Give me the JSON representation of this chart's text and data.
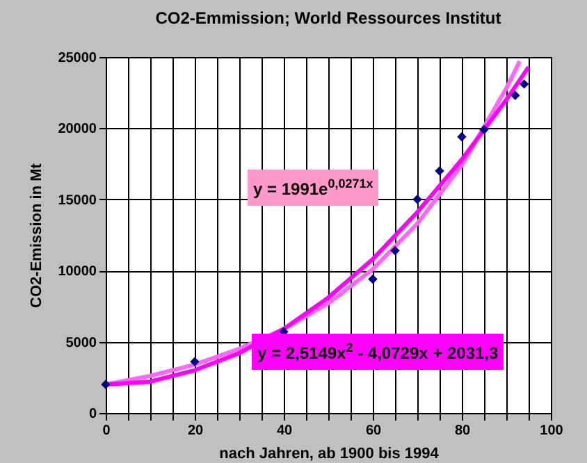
{
  "chart_data": {
    "type": "scatter",
    "title": "CO2-Emmission; World Ressources Institut",
    "xlabel": "nach Jahren, ab 1900 bis 1994",
    "ylabel": "CO2-Emission in Mt",
    "annotations": [
      "y = 1991e$^{0,0271x}$",
      "y = 2,5149x$^{2}$ - 4,0729x + 2031,3"
    ],
    "series": [
      {
        "type": "scatter",
        "color": "#000080",
        "marker": "diamond",
        "x": [
          0,
          20,
          40,
          60,
          65,
          70,
          75,
          80,
          85,
          92,
          94
        ],
        "values": [
          2000,
          3600,
          5700,
          9400,
          11400,
          15000,
          17000,
          19400,
          19900,
          22300,
          23100
        ]
      },
      {
        "type": "line",
        "color": "#ff66ff",
        "x": [
          0,
          10,
          20,
          30,
          40,
          50,
          60,
          70,
          80,
          90,
          93
        ],
        "values": [
          2000,
          2600,
          3400,
          4500,
          5900,
          7700,
          10100,
          13300,
          17400,
          22800,
          24700
        ]
      },
      {
        "type": "line",
        "color": "#ff00ff",
        "x": [
          0,
          10,
          20,
          30,
          40,
          50,
          60,
          70,
          80,
          90,
          95
        ],
        "values": [
          2000,
          2200,
          3000,
          4200,
          5900,
          8100,
          10800,
          14100,
          17800,
          22000,
          24300
        ]
      }
    ],
    "xlim": [
      0,
      100
    ],
    "xticks": [
      0,
      {
        "value": 5,
        "label": null
      },
      {
        "value": 10,
        "label": null
      },
      {
        "value": 15,
        "label": null
      },
      20,
      {
        "value": 25,
        "label": null
      },
      {
        "value": 30,
        "label": null
      },
      {
        "value": 35,
        "label": null
      },
      40,
      {
        "value": 45,
        "label": null
      },
      {
        "value": 50,
        "label": null
      },
      {
        "value": 55,
        "label": null
      },
      60,
      {
        "value": 65,
        "label": null
      },
      {
        "value": 70,
        "label": null
      },
      {
        "value": 75,
        "label": null
      },
      80,
      {
        "value": 85,
        "label": null
      },
      {
        "value": 90,
        "label": null
      },
      {
        "value": 95,
        "label": null
      },
      100
    ],
    "ylim": [
      0,
      25000
    ],
    "yticks": [
      0,
      5000,
      10000,
      15000,
      20000,
      25000
    ],
    "grid": true
  }
}
